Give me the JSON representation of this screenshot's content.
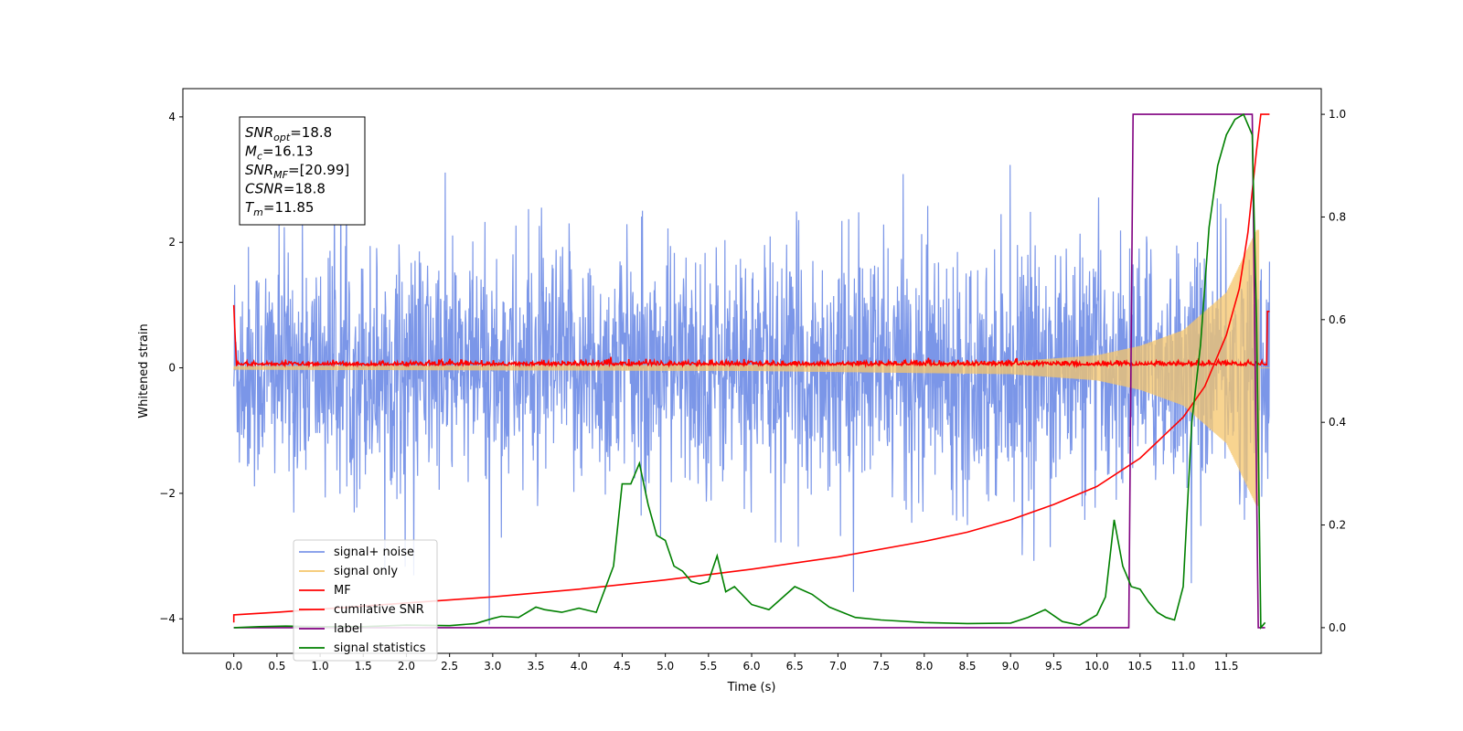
{
  "chart_data": {
    "type": "line",
    "xlabel": "Time (s)",
    "ylabel": "Whitened strain",
    "xlim": [
      -0.59,
      12.6
    ],
    "ylim": [
      -4.55,
      4.45
    ],
    "y2lim": [
      -0.05,
      1.05
    ],
    "xticks": [
      "0.0",
      "0.5",
      "1.0",
      "1.5",
      "2.0",
      "2.5",
      "3.0",
      "3.5",
      "4.0",
      "4.5",
      "5.0",
      "5.5",
      "6.0",
      "6.5",
      "7.0",
      "7.5",
      "8.0",
      "8.5",
      "9.0",
      "9.5",
      "10.0",
      "10.5",
      "11.0",
      "11.5"
    ],
    "yticks": [
      "−4",
      "−2",
      "0",
      "2",
      "4"
    ],
    "y2ticks": [
      "0.0",
      "0.2",
      "0.4",
      "0.6",
      "0.8",
      "1.0"
    ],
    "grid": false,
    "legend_position": "lower-left",
    "annotation": {
      "lines": [
        {
          "base": "SNR",
          "sub": "opt",
          "rest": "=18.8"
        },
        {
          "base": "M",
          "sub": "c",
          "rest": "=16.13"
        },
        {
          "base": "SNR",
          "sub": "MF",
          "rest": "=[20.99]"
        },
        {
          "base": "CSNR",
          "sub": "",
          "rest": "=18.8"
        },
        {
          "base": "T",
          "sub": "m",
          "rest": "=11.85"
        }
      ]
    },
    "series": [
      {
        "name": "signal+ noise",
        "color": "#7b96e8",
        "axis": "left",
        "kind": "noise",
        "x_range": [
          0.0,
          12.0
        ],
        "amplitude_sd": 0.95,
        "typical_range": [
          -2.8,
          3.0
        ]
      },
      {
        "name": "signal only",
        "color": "#f5c66b",
        "axis": "left",
        "kind": "chirp",
        "x_range": [
          0.0,
          12.0
        ],
        "envelope": [
          [
            0.0,
            0.03
          ],
          [
            6.0,
            0.05
          ],
          [
            9.0,
            0.1
          ],
          [
            10.0,
            0.2
          ],
          [
            10.5,
            0.35
          ],
          [
            11.0,
            0.6
          ],
          [
            11.5,
            1.2
          ],
          [
            11.85,
            2.2
          ]
        ]
      },
      {
        "name": "MF",
        "color": "#ff0000",
        "axis": "left",
        "kind": "mf",
        "x_range": [
          0.0,
          12.0
        ],
        "start_value": 1.0,
        "end_value": 0.9,
        "noise_sd": 0.035
      },
      {
        "name": "cumilative SNR",
        "color": "#ff0000",
        "axis": "right",
        "x": [
          0.0,
          0.0,
          0.5,
          1.0,
          2.0,
          3.0,
          4.0,
          5.0,
          6.0,
          7.0,
          8.0,
          8.5,
          9.0,
          9.5,
          10.0,
          10.5,
          11.0,
          11.25,
          11.5,
          11.65,
          11.75,
          11.85,
          11.9,
          11.95,
          12.0
        ],
        "y": [
          0.01,
          0.025,
          0.03,
          0.036,
          0.048,
          0.06,
          0.075,
          0.093,
          0.114,
          0.138,
          0.168,
          0.186,
          0.21,
          0.24,
          0.275,
          0.33,
          0.41,
          0.47,
          0.57,
          0.66,
          0.77,
          0.93,
          1.0,
          1.0,
          1.0
        ]
      },
      {
        "name": "label",
        "color": "#800080",
        "axis": "right",
        "x": [
          0.0,
          10.37,
          10.42,
          11.8,
          11.87,
          11.95
        ],
        "y": [
          0.0,
          0.0,
          1.0,
          1.0,
          0.0,
          0.0
        ]
      },
      {
        "name": "signal statistics",
        "color": "#008000",
        "axis": "right",
        "x": [
          0.0,
          0.3,
          0.6,
          1.0,
          1.5,
          2.0,
          2.5,
          2.8,
          3.0,
          3.1,
          3.3,
          3.5,
          3.6,
          3.8,
          4.0,
          4.2,
          4.4,
          4.5,
          4.6,
          4.7,
          4.8,
          4.9,
          5.0,
          5.1,
          5.2,
          5.3,
          5.4,
          5.5,
          5.6,
          5.7,
          5.8,
          6.0,
          6.2,
          6.5,
          6.7,
          6.9,
          7.2,
          7.5,
          8.0,
          8.5,
          9.0,
          9.2,
          9.4,
          9.6,
          9.8,
          10.0,
          10.1,
          10.2,
          10.3,
          10.4,
          10.5,
          10.6,
          10.7,
          10.8,
          10.9,
          11.0,
          11.1,
          11.2,
          11.3,
          11.4,
          11.5,
          11.6,
          11.7,
          11.8,
          11.85,
          11.9,
          11.95
        ],
        "y": [
          0.0,
          0.002,
          0.003,
          0.002,
          0.002,
          0.005,
          0.004,
          0.008,
          0.018,
          0.022,
          0.02,
          0.04,
          0.035,
          0.03,
          0.038,
          0.03,
          0.12,
          0.28,
          0.28,
          0.32,
          0.24,
          0.18,
          0.17,
          0.12,
          0.11,
          0.09,
          0.085,
          0.09,
          0.14,
          0.07,
          0.08,
          0.045,
          0.035,
          0.08,
          0.065,
          0.04,
          0.02,
          0.015,
          0.01,
          0.008,
          0.009,
          0.02,
          0.035,
          0.012,
          0.005,
          0.025,
          0.06,
          0.21,
          0.12,
          0.08,
          0.075,
          0.05,
          0.03,
          0.02,
          0.015,
          0.08,
          0.4,
          0.55,
          0.78,
          0.9,
          0.96,
          0.99,
          1.0,
          0.96,
          0.6,
          0.0,
          0.01
        ]
      }
    ]
  }
}
